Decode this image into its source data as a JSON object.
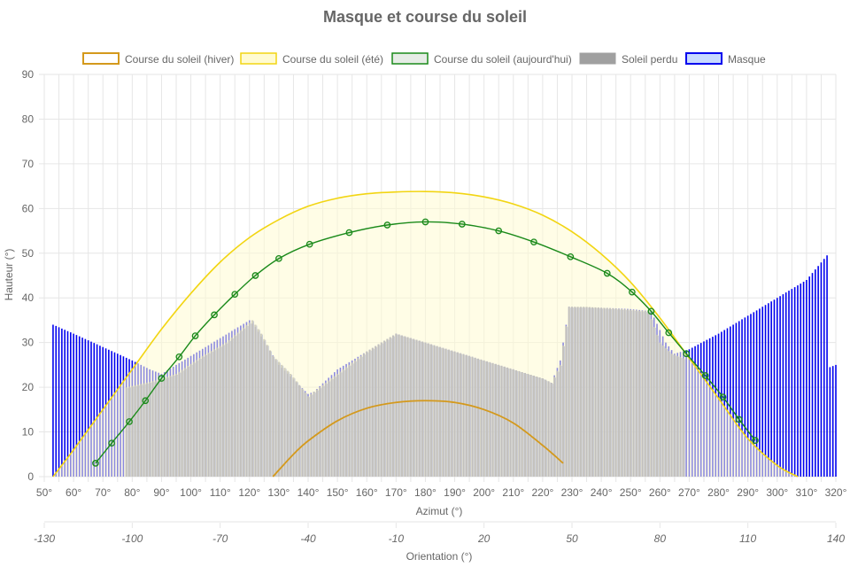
{
  "chart_data": {
    "type": "line",
    "title": "Masque et course du soleil",
    "legend_position": "top",
    "grid": true,
    "xlabel": "Azimut (°)",
    "x2label": "Orientation (°)",
    "ylabel": "Hauteur (°)",
    "xlim": [
      50,
      320
    ],
    "x2lim": [
      -130,
      140
    ],
    "ylim": [
      0,
      90
    ],
    "x_ticks": [
      "50°",
      "60°",
      "70°",
      "80°",
      "90°",
      "100°",
      "110°",
      "120°",
      "130°",
      "140°",
      "150°",
      "160°",
      "170°",
      "180°",
      "190°",
      "200°",
      "210°",
      "220°",
      "230°",
      "240°",
      "250°",
      "260°",
      "270°",
      "280°",
      "290°",
      "300°",
      "310°",
      "320°"
    ],
    "x2_ticks": [
      "-130",
      "-100",
      "-70",
      "-40",
      "-10",
      "20",
      "50",
      "80",
      "110",
      "140"
    ],
    "y_ticks": [
      "0",
      "10",
      "20",
      "30",
      "40",
      "50",
      "60",
      "70",
      "80",
      "90"
    ],
    "colors": {
      "winter": "#d4991c",
      "summer": "#f2d512",
      "today": "#1a8a1a",
      "lost": "#999999",
      "mask": "#0000ee"
    },
    "series": [
      {
        "name": "Course du soleil (hiver)",
        "x": [
          128,
          135,
          140,
          150,
          160,
          170,
          180,
          190,
          200,
          210,
          220,
          227
        ],
        "y": [
          0,
          5,
          8,
          12.5,
          15.3,
          16.6,
          17,
          16.6,
          15,
          12,
          7,
          3
        ]
      },
      {
        "name": "Course du soleil (été)",
        "x": [
          53,
          60,
          70,
          80,
          90,
          100,
          110,
          120,
          130,
          140,
          150,
          160,
          170,
          180,
          190,
          200,
          210,
          220,
          230,
          240,
          250,
          260,
          270,
          280,
          290,
          300,
          307
        ],
        "y": [
          0,
          6,
          15,
          24,
          33,
          41,
          48,
          53.5,
          57.5,
          60.5,
          62.3,
          63.3,
          63.7,
          63.8,
          63.5,
          62.6,
          61,
          58.5,
          54.8,
          49.8,
          43.5,
          35.5,
          26.5,
          17.5,
          8.5,
          2.5,
          0
        ]
      },
      {
        "name": "Course du soleil (aujourd'hui)",
        "x": [
          67.5,
          73,
          79,
          84.5,
          90,
          96,
          101.5,
          108,
          115,
          122,
          130,
          140.5,
          154,
          167,
          180,
          192.5,
          205,
          217,
          229.5,
          242,
          250.5,
          257,
          263,
          269,
          275.5,
          281.5,
          287,
          292.5
        ],
        "y": [
          3,
          7.5,
          12.3,
          17,
          22,
          26.8,
          31.5,
          36.2,
          40.8,
          45,
          48.8,
          52,
          54.6,
          56.3,
          57,
          56.5,
          55,
          52.5,
          49.2,
          45.5,
          41.3,
          37,
          32.2,
          27.5,
          22.6,
          17.8,
          12.8,
          8.1
        ]
      },
      {
        "name": "Soleil perdu",
        "x": [
          78,
          88,
          95,
          104,
          112,
          121,
          124,
          128,
          134,
          140,
          150,
          160,
          170,
          180,
          190,
          200,
          210,
          220,
          223,
          226,
          229,
          235,
          240,
          247,
          256,
          260,
          264,
          268
        ],
        "y": [
          20,
          21.5,
          23,
          27,
          30,
          35,
          32,
          27,
          23,
          18,
          23,
          28,
          32,
          30,
          28,
          26,
          24,
          22,
          21,
          25,
          38,
          38,
          37.8,
          37.5,
          37,
          30,
          27.5,
          26.5
        ]
      },
      {
        "name": "Masque",
        "x": [
          50,
          52,
          53,
          60,
          70,
          80,
          86,
          90,
          100,
          110,
          120,
          122,
          130,
          140,
          142,
          150,
          160,
          170,
          180,
          190,
          200,
          210,
          220,
          223,
          226,
          229,
          240,
          250,
          257,
          262,
          265,
          270,
          280,
          290,
          300,
          310,
          317,
          318,
          320
        ],
        "y": [
          0,
          0,
          34,
          32,
          29,
          26,
          24,
          23,
          27,
          31,
          35,
          33.5,
          25,
          18.5,
          19,
          24,
          28,
          32,
          30,
          28,
          26,
          24,
          22,
          21,
          26,
          38,
          37.8,
          37.5,
          37,
          30,
          27.5,
          28.5,
          32,
          36,
          40,
          44,
          49.5,
          24.5,
          25
        ]
      }
    ]
  }
}
